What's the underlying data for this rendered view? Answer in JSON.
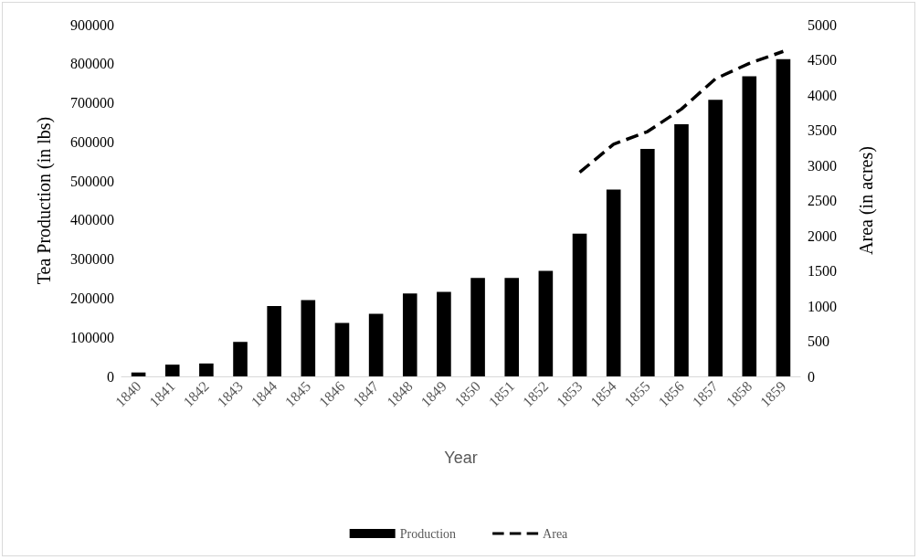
{
  "chart_data": {
    "type": "bar",
    "xlabel": "Year",
    "ylabel": "Tea Production (in lbs)",
    "y2label": "Area (in acres)",
    "categories": [
      "1840",
      "1841",
      "1842",
      "1843",
      "1844",
      "1845",
      "1846",
      "1847",
      "1848",
      "1849",
      "1850",
      "1851",
      "1852",
      "1853",
      "1854",
      "1855",
      "1856",
      "1857",
      "1858",
      "1859"
    ],
    "series": [
      {
        "name": "Production",
        "color": "#000000",
        "values": [
          10000,
          30000,
          33000,
          88000,
          180000,
          195000,
          137000,
          160000,
          212000,
          216000,
          252000,
          252000,
          270000,
          365000,
          478000,
          582000,
          645000,
          708000,
          768000,
          812000
        ]
      },
      {
        "name": "Area",
        "type": "line",
        "axis": "y2",
        "color": "#000000",
        "line_style": "dashed",
        "marker": "none",
        "values": [
          null,
          null,
          null,
          null,
          null,
          null,
          null,
          null,
          null,
          null,
          null,
          null,
          null,
          2900,
          3300,
          3480,
          3800,
          4230,
          4450,
          4620
        ]
      }
    ],
    "ylim": [
      0,
      900000
    ],
    "yticks": [
      0,
      100000,
      200000,
      300000,
      400000,
      500000,
      600000,
      700000,
      800000,
      900000
    ],
    "y2lim": [
      0,
      5000
    ],
    "y2ticks": [
      0,
      500,
      1000,
      1500,
      2000,
      2500,
      3000,
      3500,
      4000,
      4500,
      5000
    ],
    "grid": false,
    "legend": "bottom"
  }
}
